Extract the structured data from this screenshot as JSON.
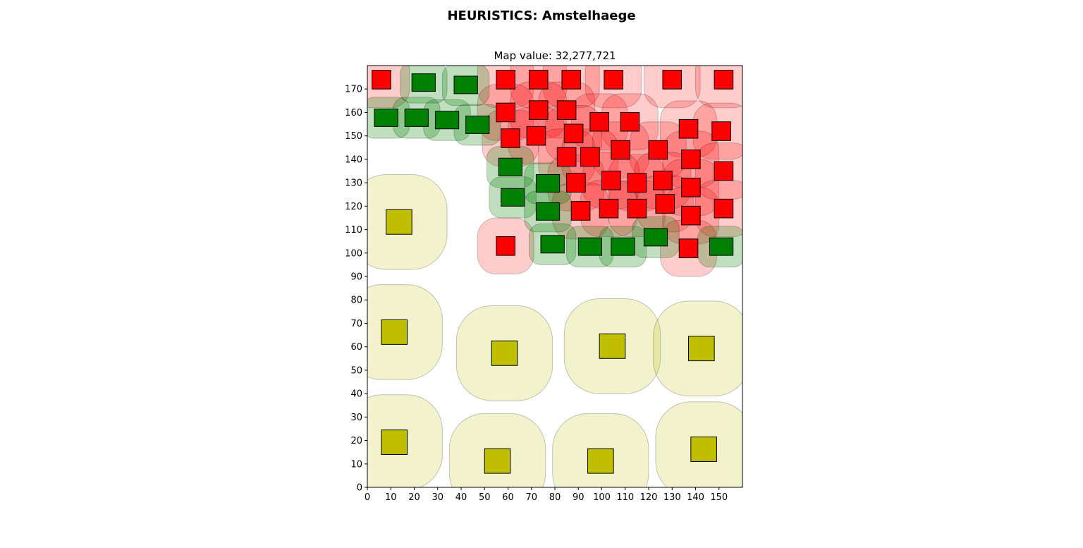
{
  "title": "HEURISTICS: Amstelhaege",
  "subtitle": "Map value: 32,277,721",
  "chart_data": {
    "type": "scatter",
    "title": "HEURISTICS: Amstelhaege",
    "subtitle": "Map value: 32,277,721",
    "xlim": [
      0,
      160
    ],
    "ylim": [
      0,
      180
    ],
    "xticks": [
      0,
      10,
      20,
      30,
      40,
      50,
      60,
      70,
      80,
      90,
      100,
      110,
      120,
      130,
      140,
      150
    ],
    "yticks": [
      0,
      10,
      20,
      30,
      40,
      50,
      60,
      70,
      80,
      90,
      100,
      110,
      120,
      130,
      140,
      150,
      160,
      170
    ],
    "colors": {
      "red": "#ff0000",
      "green": "#008000",
      "olive": "#bfbf00",
      "red_zone": "rgba(255,0,0,0.2)",
      "green_zone": "rgba(0,128,0,0.25)",
      "olive_zone": "rgba(191,191,0,0.2)"
    },
    "houses": [
      {
        "type": "red",
        "x": 2,
        "y": 170,
        "w": 8,
        "h": 8,
        "f": 8
      },
      {
        "type": "red",
        "x": 55,
        "y": 170,
        "w": 8,
        "h": 8,
        "f": 8
      },
      {
        "type": "red",
        "x": 69,
        "y": 170,
        "w": 8,
        "h": 8,
        "f": 8
      },
      {
        "type": "red",
        "x": 83,
        "y": 170,
        "w": 8,
        "h": 8,
        "f": 8
      },
      {
        "type": "red",
        "x": 101,
        "y": 170,
        "w": 8,
        "h": 8,
        "f": 8
      },
      {
        "type": "red",
        "x": 126,
        "y": 170,
        "w": 8,
        "h": 8,
        "f": 8
      },
      {
        "type": "red",
        "x": 148,
        "y": 170,
        "w": 8,
        "h": 8,
        "f": 8
      },
      {
        "type": "red",
        "x": 55,
        "y": 156,
        "w": 8,
        "h": 8,
        "f": 8
      },
      {
        "type": "red",
        "x": 69,
        "y": 157,
        "w": 8,
        "h": 8,
        "f": 8
      },
      {
        "type": "red",
        "x": 81,
        "y": 157,
        "w": 8,
        "h": 8,
        "f": 8
      },
      {
        "type": "red",
        "x": 95,
        "y": 152,
        "w": 8,
        "h": 8,
        "f": 8
      },
      {
        "type": "red",
        "x": 108,
        "y": 152,
        "w": 8,
        "h": 8,
        "f": 8
      },
      {
        "type": "red",
        "x": 133,
        "y": 149,
        "w": 8,
        "h": 8,
        "f": 8
      },
      {
        "type": "red",
        "x": 147,
        "y": 148,
        "w": 8,
        "h": 8,
        "f": 8
      },
      {
        "type": "red",
        "x": 57,
        "y": 145,
        "w": 8,
        "h": 8,
        "f": 8
      },
      {
        "type": "red",
        "x": 68,
        "y": 146,
        "w": 8,
        "h": 8,
        "f": 8
      },
      {
        "type": "red",
        "x": 84,
        "y": 147,
        "w": 8,
        "h": 8,
        "f": 8
      },
      {
        "type": "red",
        "x": 104,
        "y": 140,
        "w": 8,
        "h": 8,
        "f": 8
      },
      {
        "type": "red",
        "x": 120,
        "y": 140,
        "w": 8,
        "h": 8,
        "f": 8
      },
      {
        "type": "red",
        "x": 81,
        "y": 137,
        "w": 8,
        "h": 8,
        "f": 8
      },
      {
        "type": "red",
        "x": 91,
        "y": 137,
        "w": 8,
        "h": 8,
        "f": 8
      },
      {
        "type": "red",
        "x": 134,
        "y": 136,
        "w": 8,
        "h": 8,
        "f": 8
      },
      {
        "type": "red",
        "x": 148,
        "y": 131,
        "w": 8,
        "h": 8,
        "f": 8
      },
      {
        "type": "red",
        "x": 85,
        "y": 126,
        "w": 8,
        "h": 8,
        "f": 8
      },
      {
        "type": "red",
        "x": 100,
        "y": 127,
        "w": 8,
        "h": 8,
        "f": 8
      },
      {
        "type": "red",
        "x": 111,
        "y": 126,
        "w": 8,
        "h": 8,
        "f": 8
      },
      {
        "type": "red",
        "x": 122,
        "y": 127,
        "w": 8,
        "h": 8,
        "f": 8
      },
      {
        "type": "red",
        "x": 134,
        "y": 124,
        "w": 8,
        "h": 8,
        "f": 8
      },
      {
        "type": "red",
        "x": 87,
        "y": 114,
        "w": 8,
        "h": 8,
        "f": 8
      },
      {
        "type": "red",
        "x": 99,
        "y": 115,
        "w": 8,
        "h": 8,
        "f": 8
      },
      {
        "type": "red",
        "x": 111,
        "y": 115,
        "w": 8,
        "h": 8,
        "f": 8
      },
      {
        "type": "red",
        "x": 123,
        "y": 117,
        "w": 8,
        "h": 8,
        "f": 8
      },
      {
        "type": "red",
        "x": 134,
        "y": 112,
        "w": 8,
        "h": 8,
        "f": 8
      },
      {
        "type": "red",
        "x": 148,
        "y": 115,
        "w": 8,
        "h": 8,
        "f": 8
      },
      {
        "type": "red",
        "x": 55,
        "y": 99,
        "w": 8,
        "h": 8,
        "f": 8
      },
      {
        "type": "red",
        "x": 133,
        "y": 98,
        "w": 8,
        "h": 8,
        "f": 8
      },
      {
        "type": "green",
        "x": 3,
        "y": 154,
        "w": 10,
        "h": 7.5,
        "f": 5
      },
      {
        "type": "green",
        "x": 16,
        "y": 154,
        "w": 10,
        "h": 7.5,
        "f": 5
      },
      {
        "type": "green",
        "x": 29,
        "y": 153,
        "w": 10,
        "h": 7.5,
        "f": 5
      },
      {
        "type": "green",
        "x": 42,
        "y": 151,
        "w": 10,
        "h": 7.5,
        "f": 5
      },
      {
        "type": "green",
        "x": 19,
        "y": 169,
        "w": 10,
        "h": 7.5,
        "f": 5
      },
      {
        "type": "green",
        "x": 37,
        "y": 168,
        "w": 10,
        "h": 7.5,
        "f": 5
      },
      {
        "type": "green",
        "x": 56,
        "y": 133,
        "w": 10,
        "h": 7.5,
        "f": 5
      },
      {
        "type": "green",
        "x": 57,
        "y": 120,
        "w": 10,
        "h": 7.5,
        "f": 5
      },
      {
        "type": "green",
        "x": 72,
        "y": 126,
        "w": 10,
        "h": 7.5,
        "f": 5
      },
      {
        "type": "green",
        "x": 72,
        "y": 114,
        "w": 10,
        "h": 7.5,
        "f": 5
      },
      {
        "type": "green",
        "x": 74,
        "y": 100,
        "w": 10,
        "h": 7.5,
        "f": 5
      },
      {
        "type": "green",
        "x": 90,
        "y": 99,
        "w": 10,
        "h": 7.5,
        "f": 5
      },
      {
        "type": "green",
        "x": 104,
        "y": 99,
        "w": 10,
        "h": 7.5,
        "f": 5
      },
      {
        "type": "green",
        "x": 118,
        "y": 103,
        "w": 10,
        "h": 7.5,
        "f": 5
      },
      {
        "type": "green",
        "x": 146,
        "y": 99,
        "w": 10,
        "h": 7.5,
        "f": 5
      },
      {
        "type": "olive",
        "x": 8,
        "y": 108,
        "w": 11,
        "h": 10.5,
        "f": 15
      },
      {
        "type": "olive",
        "x": 6,
        "y": 61,
        "w": 11,
        "h": 10.5,
        "f": 15
      },
      {
        "type": "olive",
        "x": 53,
        "y": 52,
        "w": 11,
        "h": 10.5,
        "f": 15
      },
      {
        "type": "olive",
        "x": 99,
        "y": 55,
        "w": 11,
        "h": 10.5,
        "f": 15
      },
      {
        "type": "olive",
        "x": 137,
        "y": 54,
        "w": 11,
        "h": 10.5,
        "f": 15
      },
      {
        "type": "olive",
        "x": 6,
        "y": 14,
        "w": 11,
        "h": 10.5,
        "f": 15
      },
      {
        "type": "olive",
        "x": 50,
        "y": 6,
        "w": 11,
        "h": 10.5,
        "f": 15
      },
      {
        "type": "olive",
        "x": 94,
        "y": 6,
        "w": 11,
        "h": 10.5,
        "f": 15
      },
      {
        "type": "olive",
        "x": 138,
        "y": 11,
        "w": 11,
        "h": 10.5,
        "f": 15
      }
    ]
  }
}
